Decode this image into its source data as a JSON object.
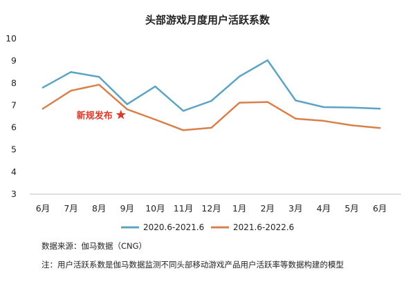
{
  "chart_data": {
    "type": "line",
    "title": "头部游戏月度用户活跃系数",
    "categories": [
      "6月",
      "7月",
      "8月",
      "9月",
      "10月",
      "11月",
      "12月",
      "1月",
      "2月",
      "3月",
      "4月",
      "5月",
      "6月"
    ],
    "yticks": [
      "3",
      "4",
      "5",
      "6",
      "7",
      "8",
      "9",
      "10"
    ],
    "ylim": [
      3,
      10
    ],
    "grid": false,
    "legend_position": "bottom",
    "series": [
      {
        "name": "2020.6-2021.6",
        "color": "#5ba3c4",
        "values": [
          7.8,
          8.5,
          8.28,
          7.05,
          7.85,
          6.75,
          7.2,
          8.3,
          9.03,
          7.22,
          6.92,
          6.9,
          6.85
        ]
      },
      {
        "name": "2021.6-2022.6",
        "color": "#d9804a",
        "values": [
          6.85,
          7.66,
          7.93,
          6.82,
          6.36,
          5.88,
          5.99,
          7.12,
          7.15,
          6.4,
          6.3,
          6.1,
          5.98
        ]
      }
    ],
    "annotation": {
      "text": "新规发布",
      "category_index": 3,
      "value": 6.6,
      "color": "#d93a2b"
    }
  },
  "footnotes": {
    "source": "数据来源：伽马数据（CNG）",
    "note": "注：用户活跃系数是伽马数据监测不同头部移动游戏产品用户活跃率等数据构建的模型"
  }
}
